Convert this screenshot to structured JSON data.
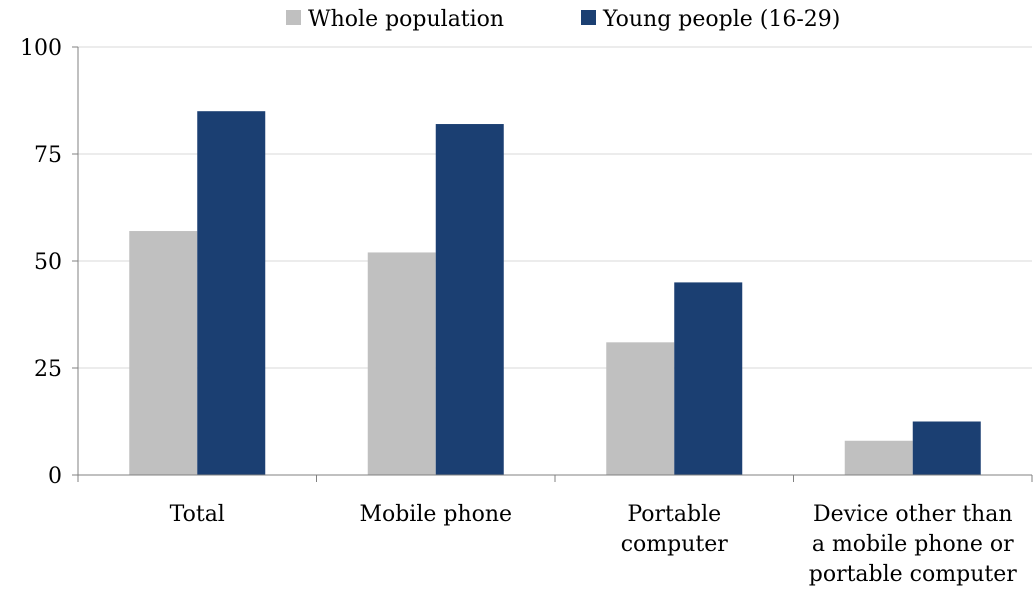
{
  "chart_data": {
    "type": "bar",
    "title": "",
    "xlabel": "",
    "ylabel": "",
    "ylim": [
      0,
      100
    ],
    "yticks": [
      0,
      25,
      50,
      75,
      100
    ],
    "categories": [
      [
        "Total"
      ],
      [
        "Mobile phone"
      ],
      [
        "Portable",
        "computer"
      ],
      [
        "Device other than",
        "a mobile phone or",
        "portable computer"
      ]
    ],
    "series": [
      {
        "name": "Whole population",
        "color": "#c0c0c0",
        "values": [
          57,
          52,
          31,
          8
        ]
      },
      {
        "name": "Young people (16-29)",
        "color": "#1b3f72",
        "values": [
          85,
          82,
          45,
          12.5
        ]
      }
    ],
    "legend": "top-center",
    "grid": true
  }
}
